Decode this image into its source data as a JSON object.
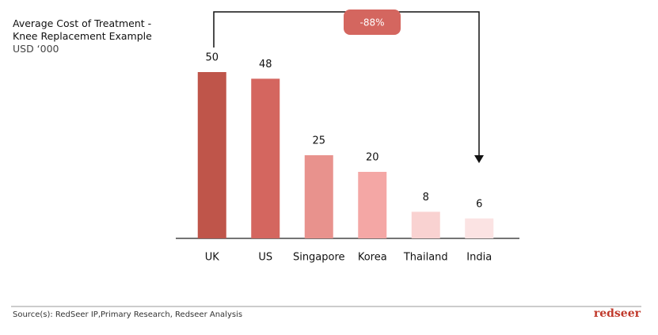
{
  "chart_data": {
    "type": "bar",
    "title": "Average Cost of Treatment - Knee Replacement Example",
    "subtitle": "USD ‘000",
    "annotation": "-88%",
    "categories": [
      "UK",
      "US",
      "Singapore",
      "Korea",
      "Thailand",
      "India"
    ],
    "values": [
      50,
      48,
      25,
      20,
      8,
      6
    ],
    "colors": [
      "#bf554a",
      "#d4665f",
      "#e8928d",
      "#f4a7a5",
      "#f9d2d1",
      "#fbe3e3"
    ]
  },
  "footer": {
    "source": "Source(s): RedSeer IP,Primary Research, Redseer Analysis",
    "logo": "redseer"
  }
}
